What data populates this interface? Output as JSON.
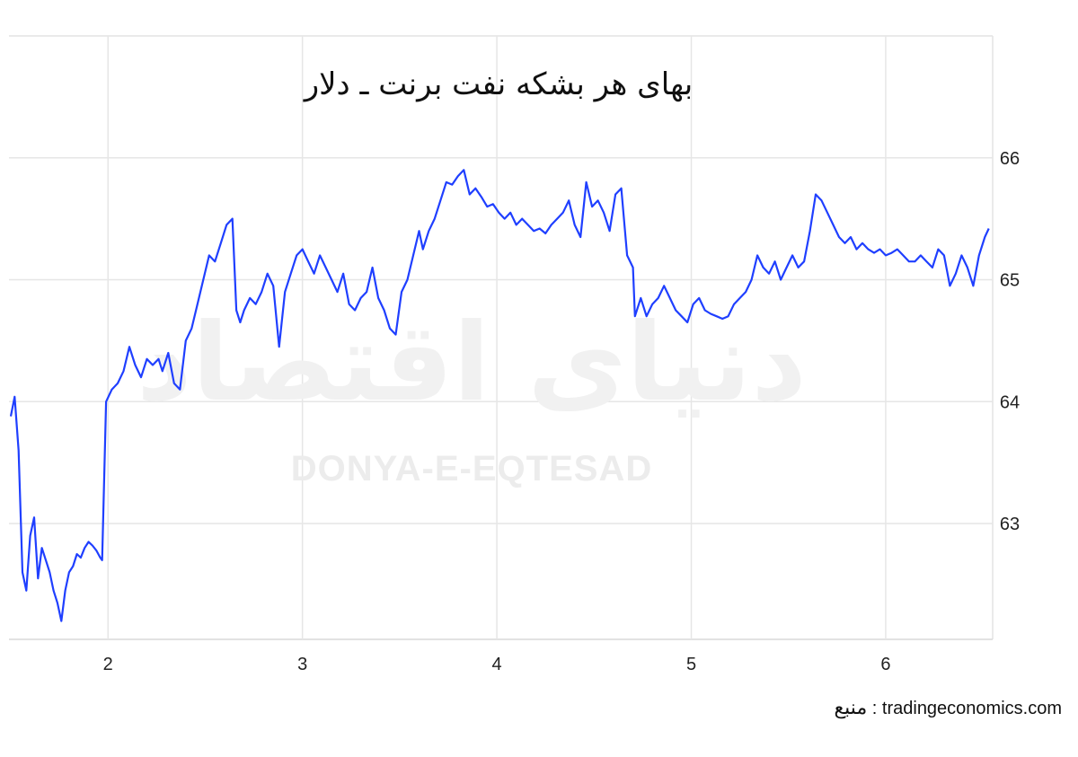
{
  "chart_data": {
    "type": "line",
    "title": "بهای هر بشکه نفت برنت ـ دلار",
    "xlabel": "",
    "ylabel": "",
    "x_ticks": [
      "2",
      "3",
      "4",
      "5",
      "6"
    ],
    "x_tick_values": [
      2,
      3,
      4,
      5,
      6
    ],
    "y_ticks": [
      "63",
      "64",
      "65",
      "66"
    ],
    "y_tick_values": [
      63,
      64,
      65,
      66
    ],
    "xlim": [
      1.5,
      6.55
    ],
    "ylim": [
      62.05,
      67
    ],
    "grid": true,
    "line_color": "#1f3fff",
    "series": [
      {
        "values": [
          [
            1.5,
            63.88
          ],
          [
            1.52,
            64.04
          ],
          [
            1.54,
            63.6
          ],
          [
            1.56,
            62.6
          ],
          [
            1.58,
            62.45
          ],
          [
            1.6,
            62.9
          ],
          [
            1.62,
            63.05
          ],
          [
            1.64,
            62.55
          ],
          [
            1.66,
            62.8
          ],
          [
            1.68,
            62.7
          ],
          [
            1.7,
            62.6
          ],
          [
            1.72,
            62.45
          ],
          [
            1.74,
            62.35
          ],
          [
            1.76,
            62.2
          ],
          [
            1.78,
            62.45
          ],
          [
            1.8,
            62.6
          ],
          [
            1.82,
            62.65
          ],
          [
            1.84,
            62.75
          ],
          [
            1.86,
            62.72
          ],
          [
            1.88,
            62.8
          ],
          [
            1.9,
            62.85
          ],
          [
            1.92,
            62.82
          ],
          [
            1.94,
            62.78
          ],
          [
            1.96,
            62.72
          ],
          [
            1.97,
            62.7
          ],
          [
            1.99,
            64.0
          ],
          [
            2.02,
            64.1
          ],
          [
            2.05,
            64.15
          ],
          [
            2.08,
            64.25
          ],
          [
            2.11,
            64.45
          ],
          [
            2.14,
            64.3
          ],
          [
            2.17,
            64.2
          ],
          [
            2.2,
            64.35
          ],
          [
            2.23,
            64.3
          ],
          [
            2.26,
            64.35
          ],
          [
            2.28,
            64.25
          ],
          [
            2.31,
            64.4
          ],
          [
            2.34,
            64.15
          ],
          [
            2.37,
            64.1
          ],
          [
            2.4,
            64.5
          ],
          [
            2.43,
            64.6
          ],
          [
            2.46,
            64.8
          ],
          [
            2.49,
            65.0
          ],
          [
            2.52,
            65.2
          ],
          [
            2.55,
            65.15
          ],
          [
            2.58,
            65.3
          ],
          [
            2.61,
            65.45
          ],
          [
            2.64,
            65.5
          ],
          [
            2.66,
            64.75
          ],
          [
            2.68,
            64.65
          ],
          [
            2.7,
            64.75
          ],
          [
            2.73,
            64.85
          ],
          [
            2.76,
            64.8
          ],
          [
            2.79,
            64.9
          ],
          [
            2.82,
            65.05
          ],
          [
            2.85,
            64.95
          ],
          [
            2.88,
            64.45
          ],
          [
            2.91,
            64.9
          ],
          [
            2.94,
            65.05
          ],
          [
            2.97,
            65.2
          ],
          [
            3.0,
            65.25
          ],
          [
            3.03,
            65.15
          ],
          [
            3.06,
            65.05
          ],
          [
            3.09,
            65.2
          ],
          [
            3.12,
            65.1
          ],
          [
            3.15,
            65.0
          ],
          [
            3.18,
            64.9
          ],
          [
            3.21,
            65.05
          ],
          [
            3.24,
            64.8
          ],
          [
            3.27,
            64.75
          ],
          [
            3.3,
            64.85
          ],
          [
            3.33,
            64.9
          ],
          [
            3.36,
            65.1
          ],
          [
            3.39,
            64.85
          ],
          [
            3.42,
            64.75
          ],
          [
            3.45,
            64.6
          ],
          [
            3.48,
            64.55
          ],
          [
            3.51,
            64.9
          ],
          [
            3.54,
            65.0
          ],
          [
            3.57,
            65.2
          ],
          [
            3.6,
            65.4
          ],
          [
            3.62,
            65.25
          ],
          [
            3.65,
            65.4
          ],
          [
            3.68,
            65.5
          ],
          [
            3.71,
            65.65
          ],
          [
            3.74,
            65.8
          ],
          [
            3.77,
            65.78
          ],
          [
            3.8,
            65.85
          ],
          [
            3.83,
            65.9
          ],
          [
            3.86,
            65.7
          ],
          [
            3.89,
            65.75
          ],
          [
            3.92,
            65.68
          ],
          [
            3.95,
            65.6
          ],
          [
            3.98,
            65.62
          ],
          [
            4.01,
            65.55
          ],
          [
            4.04,
            65.5
          ],
          [
            4.07,
            65.55
          ],
          [
            4.1,
            65.45
          ],
          [
            4.13,
            65.5
          ],
          [
            4.16,
            65.45
          ],
          [
            4.19,
            65.4
          ],
          [
            4.22,
            65.42
          ],
          [
            4.25,
            65.38
          ],
          [
            4.28,
            65.45
          ],
          [
            4.31,
            65.5
          ],
          [
            4.34,
            65.55
          ],
          [
            4.37,
            65.65
          ],
          [
            4.4,
            65.45
          ],
          [
            4.43,
            65.35
          ],
          [
            4.46,
            65.8
          ],
          [
            4.49,
            65.6
          ],
          [
            4.52,
            65.65
          ],
          [
            4.55,
            65.55
          ],
          [
            4.58,
            65.4
          ],
          [
            4.61,
            65.7
          ],
          [
            4.64,
            65.75
          ],
          [
            4.67,
            65.2
          ],
          [
            4.7,
            65.1
          ],
          [
            4.71,
            64.7
          ],
          [
            4.74,
            64.85
          ],
          [
            4.77,
            64.7
          ],
          [
            4.8,
            64.8
          ],
          [
            4.83,
            64.85
          ],
          [
            4.86,
            64.95
          ],
          [
            4.89,
            64.85
          ],
          [
            4.92,
            64.75
          ],
          [
            4.95,
            64.7
          ],
          [
            4.98,
            64.65
          ],
          [
            5.01,
            64.8
          ],
          [
            5.04,
            64.85
          ],
          [
            5.07,
            64.75
          ],
          [
            5.1,
            64.72
          ],
          [
            5.13,
            64.7
          ],
          [
            5.16,
            64.68
          ],
          [
            5.19,
            64.7
          ],
          [
            5.22,
            64.8
          ],
          [
            5.25,
            64.85
          ],
          [
            5.28,
            64.9
          ],
          [
            5.31,
            65.0
          ],
          [
            5.34,
            65.2
          ],
          [
            5.37,
            65.1
          ],
          [
            5.4,
            65.05
          ],
          [
            5.43,
            65.15
          ],
          [
            5.46,
            65.0
          ],
          [
            5.49,
            65.1
          ],
          [
            5.52,
            65.2
          ],
          [
            5.55,
            65.1
          ],
          [
            5.58,
            65.15
          ],
          [
            5.61,
            65.4
          ],
          [
            5.64,
            65.7
          ],
          [
            5.67,
            65.65
          ],
          [
            5.7,
            65.55
          ],
          [
            5.73,
            65.45
          ],
          [
            5.76,
            65.35
          ],
          [
            5.79,
            65.3
          ],
          [
            5.82,
            65.35
          ],
          [
            5.85,
            65.25
          ],
          [
            5.88,
            65.3
          ],
          [
            5.91,
            65.25
          ],
          [
            5.94,
            65.22
          ],
          [
            5.97,
            65.25
          ],
          [
            6.0,
            65.2
          ],
          [
            6.03,
            65.22
          ],
          [
            6.06,
            65.25
          ],
          [
            6.09,
            65.2
          ],
          [
            6.12,
            65.15
          ],
          [
            6.15,
            65.15
          ],
          [
            6.18,
            65.2
          ],
          [
            6.21,
            65.15
          ],
          [
            6.24,
            65.1
          ],
          [
            6.27,
            65.25
          ],
          [
            6.3,
            65.2
          ],
          [
            6.33,
            64.95
          ],
          [
            6.36,
            65.05
          ],
          [
            6.39,
            65.2
          ],
          [
            6.42,
            65.1
          ],
          [
            6.45,
            64.95
          ],
          [
            6.48,
            65.2
          ],
          [
            6.51,
            65.35
          ],
          [
            6.53,
            65.42
          ]
        ]
      }
    ]
  },
  "watermark": {
    "fa_text": "دنیای اقتصاد",
    "en_text": "DONYA-E-EQTESAD"
  },
  "source": {
    "label_fa": "منبع",
    "separator": " : ",
    "site": "tradingeconomics.com"
  }
}
